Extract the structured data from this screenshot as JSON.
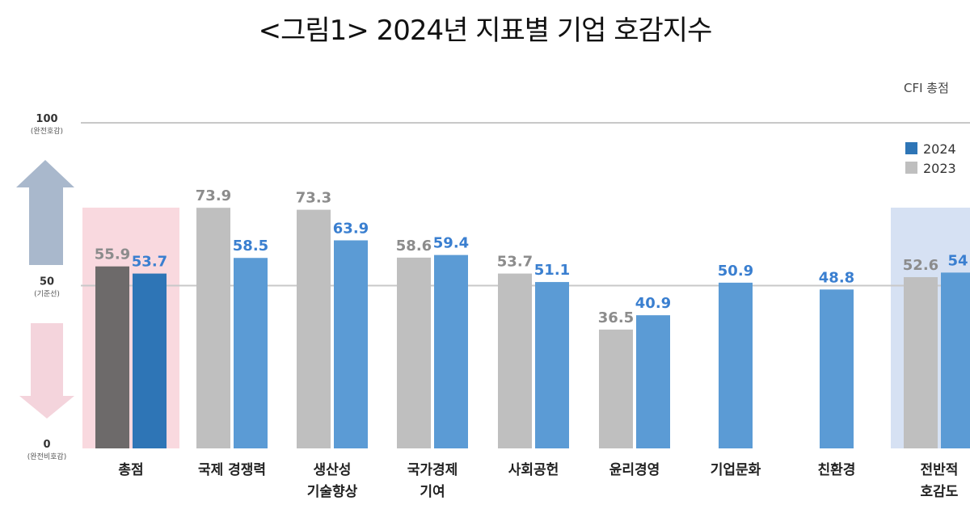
{
  "title": "<그림1> 2024년 지표별 기업 호감지수",
  "corner_label": "CFI 총점",
  "colors": {
    "blue": "#5b9bd5",
    "blue_dark": "#2e75b6",
    "gray": "#bfbfbf",
    "gray_dark": "#6d6a6a",
    "pink_band": "#f9d9df",
    "blue_band": "#d6e1f3",
    "up_arrow": "#a9b8cc",
    "down_arrow": "#f4d4dc"
  },
  "y_axis": {
    "top": "100",
    "top_sub": "(완전호감)",
    "mid": "50",
    "mid_sub": "(기준선)",
    "bottom": "0",
    "bottom_sub": "(완전비호감)"
  },
  "chart_data": {
    "type": "bar",
    "ylim": [
      0,
      100
    ],
    "gridlines": [
      50,
      100
    ],
    "legend_position": "top-right",
    "categories": [
      "총점",
      "국제 경쟁력",
      "생산성 기술향상",
      "국가경제 기여",
      "사회공헌",
      "윤리경영",
      "기업문화",
      "친환경",
      "전반적 호감도"
    ],
    "category_lines": [
      [
        "총점"
      ],
      [
        "국제 경쟁력"
      ],
      [
        "생산성",
        "기술향상"
      ],
      [
        "국가경제",
        "기여"
      ],
      [
        "사회공헌"
      ],
      [
        "윤리경영"
      ],
      [
        "기업문화"
      ],
      [
        "친환경"
      ],
      [
        "전반적",
        "호감도"
      ]
    ],
    "series": [
      {
        "name": "2023",
        "values": [
          55.9,
          73.9,
          73.3,
          58.6,
          53.7,
          36.5,
          null,
          null,
          52.6
        ]
      },
      {
        "name": "2024",
        "values": [
          53.7,
          58.5,
          63.9,
          59.4,
          51.1,
          40.9,
          50.9,
          48.8,
          54
        ]
      }
    ],
    "value_labels": {
      "2023": [
        "55.9",
        "73.9",
        "73.3",
        "58.6",
        "53.7",
        "36.5",
        "",
        "",
        "52.6"
      ],
      "2024": [
        "53.7",
        "58.5",
        "63.9",
        "59.4",
        "51.1",
        "40.9",
        "50.9",
        "48.8",
        "54"
      ]
    },
    "highlighted_categories": [
      "총점",
      "전반적 호감도"
    ]
  }
}
